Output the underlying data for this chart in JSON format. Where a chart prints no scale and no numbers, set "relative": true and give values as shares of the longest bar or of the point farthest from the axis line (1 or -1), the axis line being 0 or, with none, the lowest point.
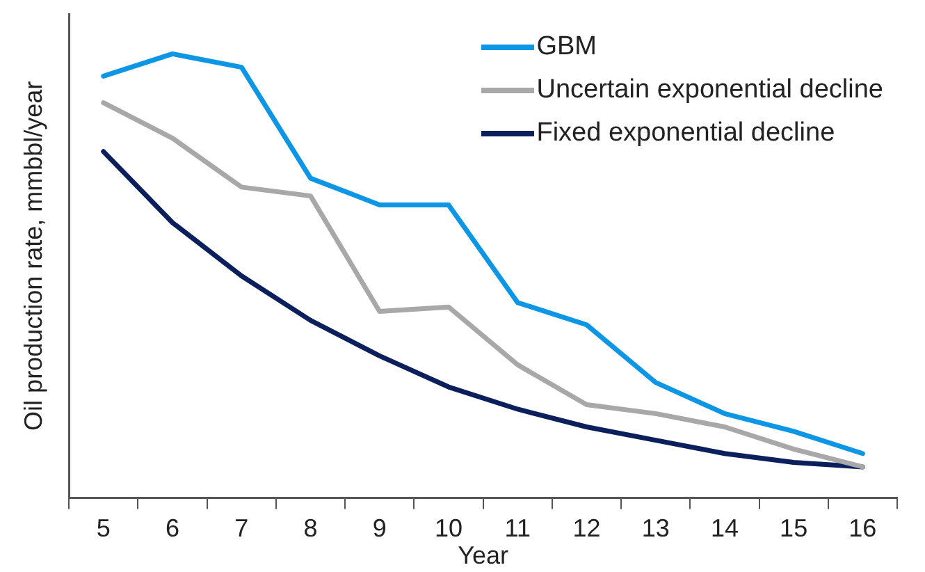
{
  "chart_data": {
    "type": "line",
    "xlabel": "Year",
    "ylabel": "Oil production rate, mmbbl/year",
    "relative": true,
    "legend": "top right",
    "marker": "none",
    "line_style": "solid",
    "grid": false,
    "categories": [
      "5",
      "6",
      "7",
      "8",
      "9",
      "10",
      "11",
      "12",
      "13",
      "14",
      "15",
      "16"
    ],
    "series": [
      {
        "name": "GBM",
        "color": "#0e96e6",
        "values": [
          0.95,
          1,
          0.97,
          0.72,
          0.66,
          0.66,
          0.44,
          0.39,
          0.26,
          0.19,
          0.15,
          0.1
        ]
      },
      {
        "name": "Uncertain exponential decline",
        "color": "#a8a8a8",
        "values": [
          0.89,
          0.81,
          0.7,
          0.68,
          0.42,
          0.43,
          0.3,
          0.21,
          0.19,
          0.16,
          0.11,
          0.07
        ]
      },
      {
        "name": "Fixed exponential decline",
        "color": "#0a1f5c",
        "values": [
          0.78,
          0.62,
          0.5,
          0.4,
          0.32,
          0.25,
          0.2,
          0.16,
          0.13,
          0.1,
          0.08,
          0.07
        ]
      }
    ]
  }
}
